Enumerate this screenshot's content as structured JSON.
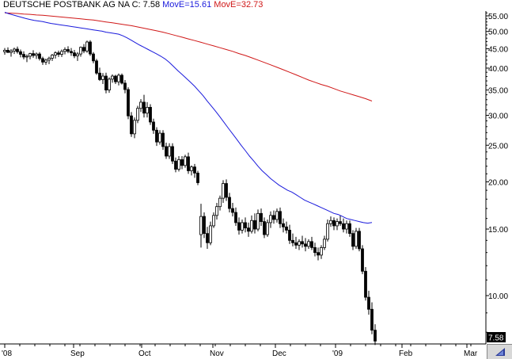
{
  "title": {
    "name": "DEUTSCHE POSTBANK AG NA",
    "close_label": "C: 7.58",
    "ma_fast_label": "MovE=15.61",
    "ma_slow_label": "MovE=32.73"
  },
  "colors": {
    "ma_fast": "#1a1adc",
    "ma_slow": "#d01818",
    "candles": "#000000",
    "axis": "#000000"
  },
  "corner_button_icon": "arrow-icon",
  "chart_data": {
    "type": "candlestick",
    "y_scale": "log",
    "ylim": [
      7.0,
      57.0
    ],
    "y_ticks": [
      "55.00",
      "50.00",
      "45.00",
      "40.00",
      "35.00",
      "30.00",
      "25.00",
      "20.00",
      "15.00",
      "10.00"
    ],
    "x_labels": [
      "'08",
      "Sep",
      "Oct",
      "Nov",
      "Dec",
      "'09",
      "Feb",
      "Mar"
    ],
    "last_price_label": "7.58",
    "last_price": 7.58,
    "candles": [
      [
        44.2,
        45.2,
        43.4,
        44.6
      ],
      [
        44.6,
        45.4,
        43.9,
        44.0
      ],
      [
        44.0,
        44.9,
        42.9,
        44.4
      ],
      [
        44.4,
        45.3,
        43.6,
        44.9
      ],
      [
        44.9,
        45.6,
        43.7,
        44.2
      ],
      [
        44.2,
        44.8,
        42.7,
        43.5
      ],
      [
        43.5,
        44.3,
        42.2,
        42.8
      ],
      [
        42.8,
        43.5,
        41.5,
        43.0
      ],
      [
        43.0,
        43.9,
        42.2,
        43.7
      ],
      [
        43.7,
        44.6,
        42.6,
        43.2
      ],
      [
        43.2,
        44.0,
        42.3,
        43.6
      ],
      [
        43.6,
        44.1,
        41.9,
        42.4
      ],
      [
        42.4,
        42.9,
        40.8,
        41.5
      ],
      [
        41.5,
        42.4,
        40.8,
        42.0
      ],
      [
        42.0,
        42.9,
        41.0,
        42.5
      ],
      [
        42.5,
        43.6,
        41.8,
        43.3
      ],
      [
        43.3,
        44.3,
        42.4,
        43.9
      ],
      [
        43.9,
        44.5,
        42.8,
        43.5
      ],
      [
        43.5,
        44.8,
        42.8,
        44.3
      ],
      [
        44.3,
        45.4,
        43.5,
        44.8
      ],
      [
        44.8,
        45.7,
        43.8,
        44.3
      ],
      [
        44.3,
        45.2,
        43.1,
        43.9
      ],
      [
        43.9,
        44.7,
        42.5,
        43.1
      ],
      [
        43.1,
        44.1,
        41.8,
        43.6
      ],
      [
        43.6,
        45.6,
        42.9,
        45.4
      ],
      [
        45.4,
        46.3,
        43.8,
        44.4
      ],
      [
        44.4,
        47.3,
        43.9,
        46.9
      ],
      [
        46.9,
        47.4,
        43.1,
        43.6
      ],
      [
        43.6,
        44.1,
        41.2,
        41.8
      ],
      [
        41.8,
        42.3,
        38.4,
        38.8
      ],
      [
        38.8,
        40.1,
        37.0,
        37.3
      ],
      [
        37.3,
        38.8,
        36.3,
        38.1
      ],
      [
        38.1,
        38.9,
        34.3,
        35.0
      ],
      [
        35.0,
        37.8,
        34.4,
        37.4
      ],
      [
        37.4,
        38.5,
        36.6,
        38.1
      ],
      [
        38.1,
        38.4,
        36.3,
        36.8
      ],
      [
        36.8,
        38.7,
        36.0,
        38.3
      ],
      [
        38.3,
        38.7,
        36.2,
        36.5
      ],
      [
        36.5,
        37.2,
        34.3,
        35.1
      ],
      [
        35.1,
        35.6,
        29.3,
        29.9
      ],
      [
        29.9,
        30.6,
        26.3,
        26.8
      ],
      [
        26.8,
        29.6,
        26.1,
        29.1
      ],
      [
        29.1,
        31.8,
        28.6,
        31.3
      ],
      [
        31.3,
        33.1,
        30.6,
        32.5
      ],
      [
        32.5,
        34.0,
        29.6,
        30.4
      ],
      [
        30.4,
        32.5,
        29.6,
        31.5
      ],
      [
        31.5,
        32.1,
        28.3,
        28.8
      ],
      [
        28.8,
        29.4,
        26.8,
        27.4
      ],
      [
        27.4,
        27.9,
        24.9,
        25.5
      ],
      [
        25.5,
        27.4,
        25.1,
        26.9
      ],
      [
        26.9,
        27.4,
        24.3,
        24.8
      ],
      [
        24.8,
        25.4,
        23.0,
        23.4
      ],
      [
        23.4,
        25.3,
        23.0,
        24.8
      ],
      [
        24.8,
        25.3,
        22.3,
        22.7
      ],
      [
        22.7,
        23.2,
        21.2,
        21.6
      ],
      [
        21.6,
        23.4,
        21.3,
        22.9
      ],
      [
        22.9,
        23.4,
        21.6,
        22.1
      ],
      [
        22.1,
        23.6,
        21.8,
        23.3
      ],
      [
        23.3,
        23.9,
        21.0,
        21.4
      ],
      [
        21.4,
        22.1,
        20.8,
        21.9
      ],
      [
        21.9,
        22.3,
        20.5,
        21.1
      ],
      [
        21.1,
        21.4,
        19.6,
        19.9
      ],
      [
        14.5,
        17.5,
        13.4,
        16.2
      ],
      [
        16.2,
        16.6,
        14.2,
        14.6
      ],
      [
        14.6,
        15.2,
        13.3,
        13.8
      ],
      [
        13.8,
        15.7,
        13.6,
        15.3
      ],
      [
        15.3,
        16.6,
        15.1,
        16.3
      ],
      [
        16.3,
        17.6,
        15.9,
        17.2
      ],
      [
        17.2,
        18.4,
        16.8,
        18.1
      ],
      [
        18.1,
        20.2,
        17.6,
        19.8
      ],
      [
        19.8,
        20.3,
        17.8,
        18.2
      ],
      [
        18.2,
        18.7,
        16.6,
        17.0
      ],
      [
        17.0,
        17.6,
        16.2,
        16.6
      ],
      [
        16.6,
        17.1,
        15.3,
        15.6
      ],
      [
        15.6,
        16.1,
        14.5,
        14.9
      ],
      [
        14.9,
        15.9,
        14.6,
        15.6
      ],
      [
        15.6,
        16.1,
        14.7,
        15.1
      ],
      [
        15.1,
        15.6,
        14.3,
        14.8
      ],
      [
        14.8,
        16.3,
        14.6,
        15.8
      ],
      [
        15.8,
        16.5,
        14.6,
        15.0
      ],
      [
        15.0,
        16.9,
        14.8,
        16.5
      ],
      [
        16.5,
        17.0,
        15.3,
        15.7
      ],
      [
        15.7,
        16.1,
        14.2,
        14.5
      ],
      [
        14.5,
        15.9,
        14.3,
        15.6
      ],
      [
        15.6,
        16.7,
        15.1,
        16.3
      ],
      [
        16.3,
        16.8,
        15.5,
        15.9
      ],
      [
        15.9,
        17.0,
        15.6,
        16.7
      ],
      [
        16.7,
        17.1,
        15.1,
        15.5
      ],
      [
        15.5,
        16.0,
        14.7,
        15.2
      ],
      [
        15.2,
        15.7,
        14.6,
        14.9
      ],
      [
        14.9,
        15.4,
        13.7,
        14.0
      ],
      [
        14.0,
        14.6,
        13.5,
        13.8
      ],
      [
        13.8,
        14.3,
        13.3,
        13.6
      ],
      [
        13.6,
        14.1,
        13.2,
        13.9
      ],
      [
        13.9,
        14.4,
        13.4,
        13.7
      ],
      [
        13.7,
        14.2,
        13.1,
        13.5
      ],
      [
        13.5,
        14.1,
        13.3,
        13.9
      ],
      [
        13.9,
        14.3,
        13.2,
        13.4
      ],
      [
        13.4,
        13.8,
        12.7,
        13.0
      ],
      [
        13.0,
        13.4,
        12.4,
        12.8
      ],
      [
        12.8,
        13.6,
        12.5,
        13.4
      ],
      [
        13.4,
        14.4,
        13.2,
        14.1
      ],
      [
        14.1,
        15.9,
        13.9,
        15.5
      ],
      [
        15.5,
        16.2,
        15.2,
        15.8
      ],
      [
        15.8,
        16.1,
        14.9,
        15.3
      ],
      [
        15.3,
        16.0,
        14.9,
        15.7
      ],
      [
        15.7,
        16.3,
        15.3,
        15.5
      ],
      [
        15.5,
        16.0,
        14.7,
        15.0
      ],
      [
        15.0,
        15.8,
        14.6,
        15.5
      ],
      [
        15.5,
        15.8,
        14.3,
        14.6
      ],
      [
        14.6,
        14.9,
        13.2,
        13.5
      ],
      [
        13.5,
        15.1,
        13.3,
        14.8
      ],
      [
        14.8,
        15.1,
        13.1,
        13.3
      ],
      [
        13.3,
        13.6,
        11.4,
        11.6
      ],
      [
        11.6,
        11.9,
        9.7,
        9.9
      ],
      [
        9.9,
        10.3,
        8.9,
        9.2
      ],
      [
        9.2,
        9.6,
        7.9,
        8.1
      ],
      [
        8.1,
        8.4,
        7.4,
        7.58
      ]
    ],
    "series": [
      {
        "name": "MovE=15.61",
        "values": [
          56.2,
          55.7,
          55.3,
          54.9,
          54.5,
          54.1,
          53.8,
          53.5,
          53.3,
          53.1,
          52.8,
          52.5,
          52.3,
          52.1,
          51.9,
          51.7,
          51.5,
          51.3,
          51.1,
          50.9,
          50.7,
          50.5,
          50.3,
          50.1,
          49.8,
          49.6,
          49.4,
          49.2,
          48.7,
          48.1,
          47.4,
          46.7,
          46.0,
          45.4,
          44.8,
          44.2,
          43.6,
          43.0,
          42.3,
          41.4,
          40.4,
          39.4,
          38.5,
          37.6,
          36.7,
          35.8,
          34.8,
          33.8,
          32.7,
          31.7,
          30.7,
          29.7,
          28.7,
          27.7,
          26.8,
          25.9,
          25.0,
          24.2,
          23.4,
          22.7,
          22.0,
          21.4,
          20.9,
          20.4,
          20.0,
          19.6,
          19.3,
          19.0,
          18.8,
          18.5,
          18.2,
          17.9,
          17.7,
          17.5,
          17.3,
          17.1,
          16.9,
          16.7,
          16.5,
          16.4,
          16.2,
          16.0,
          15.9,
          15.8,
          15.7,
          15.6,
          15.55,
          15.61
        ]
      },
      {
        "name": "MovE=32.73",
        "values": [
          56.0,
          55.9,
          55.8,
          55.6,
          55.5,
          55.3,
          55.2,
          55.0,
          54.8,
          54.6,
          54.4,
          54.2,
          54.0,
          53.8,
          53.6,
          53.3,
          53.0,
          52.7,
          52.4,
          52.1,
          51.8,
          51.4,
          51.0,
          50.6,
          50.2,
          49.8,
          49.3,
          48.8,
          48.3,
          47.8,
          47.3,
          46.8,
          46.3,
          45.8,
          45.3,
          44.8,
          44.3,
          43.7,
          43.2,
          42.6,
          42.0,
          41.4,
          40.8,
          40.2,
          39.6,
          39.0,
          38.4,
          37.8,
          37.2,
          36.7,
          36.2,
          35.8,
          35.3,
          34.8,
          34.4,
          34.0,
          33.6,
          33.2,
          32.73
        ]
      }
    ]
  }
}
